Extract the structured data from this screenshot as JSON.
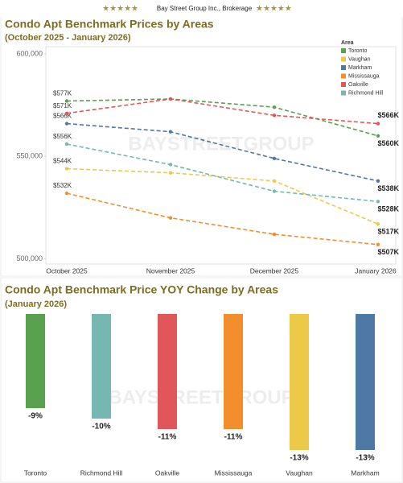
{
  "header": {
    "stars_left": "★★★★★",
    "brand": "Bay Street Group Inc., Brokerage",
    "stars_right": "★★★★★"
  },
  "chart_data": [
    {
      "type": "line",
      "title": "Condo Apt Benchmark Prices by Areas",
      "subtitle": "(October 2025 - January 2026)",
      "watermark": "BAYSTREETGROUP",
      "legend_title": "Area",
      "legend": "top-right",
      "categories": [
        "October 2025",
        "November 2025",
        "December 2025",
        "January 2026"
      ],
      "ylim": [
        497500,
        603500
      ],
      "yticks": [
        {
          "value": 500000,
          "label": "500,000"
        },
        {
          "value": 550000,
          "label": "550,000"
        },
        {
          "value": 600000,
          "label": "600,000"
        }
      ],
      "series": [
        {
          "name": "Toronto",
          "color": "#59a14f",
          "values": [
            577000,
            578000,
            574000,
            560000
          ],
          "value_labels": [
            "$577K",
            null,
            null,
            "$560K"
          ]
        },
        {
          "name": "Vaughan",
          "color": "#edc948",
          "values": [
            544000,
            542000,
            538000,
            517000
          ],
          "value_labels": [
            "$544K",
            null,
            null,
            "$517K"
          ]
        },
        {
          "name": "Markham",
          "color": "#4e79a7",
          "values": [
            566000,
            562000,
            549000,
            538000
          ],
          "value_labels": [
            "$566K",
            null,
            null,
            "$538K"
          ]
        },
        {
          "name": "Mississauga",
          "color": "#f28e2b",
          "values": [
            532000,
            520000,
            512000,
            507000
          ],
          "value_labels": [
            "$532K",
            null,
            null,
            "$507K"
          ]
        },
        {
          "name": "Oakville",
          "color": "#e15759",
          "values": [
            571000,
            578000,
            570000,
            566000
          ],
          "value_labels": [
            "$571K",
            null,
            null,
            "$566K"
          ]
        },
        {
          "name": "Richmond Hill",
          "color": "#76b7b2",
          "values": [
            556000,
            546000,
            533000,
            528000
          ],
          "value_labels": [
            "$556K",
            null,
            null,
            "$528K"
          ]
        }
      ]
    },
    {
      "type": "bar",
      "title": "Condo Apt Benchmark Price YOY Change by Areas",
      "subtitle": "(January 2026)",
      "watermark": "BAYSTREETGROUP",
      "categories": [
        "Toronto",
        "Richmond Hill",
        "Oakville",
        "Mississauga",
        "Vaughan",
        "Markham"
      ],
      "values": [
        -9,
        -10,
        -11,
        -11,
        -13,
        -13
      ],
      "value_labels": [
        "-9%",
        "-10%",
        "-11%",
        "-11%",
        "-13%",
        "-13%"
      ],
      "colors": [
        "#59a14f",
        "#76b7b2",
        "#e15759",
        "#f28e2b",
        "#edc948",
        "#4e79a7"
      ],
      "ylim": [
        -14,
        0
      ]
    }
  ]
}
